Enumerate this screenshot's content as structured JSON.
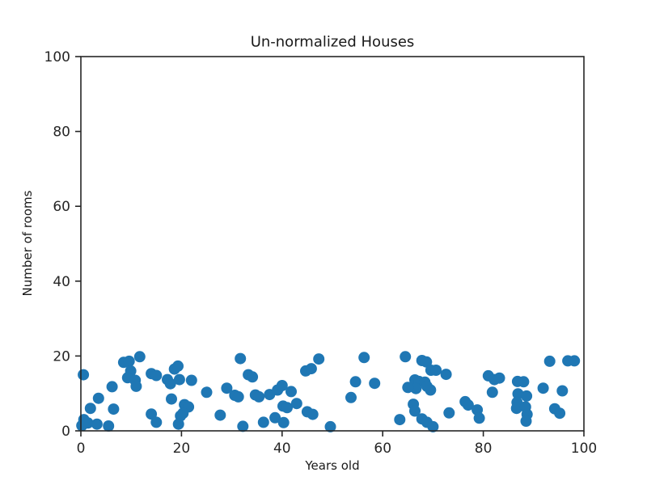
{
  "figure": {
    "background": "#ffffff"
  },
  "chart_data": {
    "type": "scatter",
    "title": "Un-normalized Houses",
    "xlabel": "Years old",
    "ylabel": "Number of rooms",
    "xlim": [
      0,
      100
    ],
    "ylim": [
      0,
      100
    ],
    "xticks": [
      0,
      20,
      40,
      60,
      80,
      100
    ],
    "yticks": [
      0,
      20,
      40,
      60,
      80,
      100
    ],
    "grid": false,
    "legend": null,
    "marker_color": "#1f77b4",
    "axis_color": "#262626",
    "marker_radius_px": 7,
    "points": [
      [
        0.5,
        15.0
      ],
      [
        0.2,
        1.4
      ],
      [
        0.6,
        3.0
      ],
      [
        1.4,
        2.1
      ],
      [
        3.2,
        1.8
      ],
      [
        5.5,
        1.3
      ],
      [
        1.9,
        6.0
      ],
      [
        3.5,
        8.7
      ],
      [
        6.2,
        11.8
      ],
      [
        6.5,
        5.8
      ],
      [
        8.5,
        18.3
      ],
      [
        9.6,
        18.6
      ],
      [
        9.9,
        16.0
      ],
      [
        9.3,
        14.2
      ],
      [
        10.8,
        13.5
      ],
      [
        11.0,
        11.9
      ],
      [
        11.7,
        19.8
      ],
      [
        14.0,
        15.3
      ],
      [
        15.0,
        14.8
      ],
      [
        14.0,
        4.5
      ],
      [
        17.2,
        13.7
      ],
      [
        17.8,
        12.6
      ],
      [
        18.6,
        16.5
      ],
      [
        15.0,
        2.3
      ],
      [
        19.3,
        17.3
      ],
      [
        19.6,
        13.7
      ],
      [
        22.0,
        13.5
      ],
      [
        18.0,
        8.5
      ],
      [
        20.6,
        7.0
      ],
      [
        21.4,
        6.4
      ],
      [
        20.3,
        4.7
      ],
      [
        19.8,
        4.0
      ],
      [
        19.4,
        1.8
      ],
      [
        25.0,
        10.3
      ],
      [
        27.7,
        4.2
      ],
      [
        29.0,
        11.4
      ],
      [
        31.7,
        19.3
      ],
      [
        30.6,
        9.5
      ],
      [
        31.3,
        9.1
      ],
      [
        33.3,
        15.0
      ],
      [
        34.1,
        14.4
      ],
      [
        34.7,
        9.6
      ],
      [
        35.4,
        9.1
      ],
      [
        32.2,
        1.2
      ],
      [
        36.3,
        2.3
      ],
      [
        37.5,
        9.7
      ],
      [
        39.1,
        10.9
      ],
      [
        40.0,
        12.1
      ],
      [
        41.8,
        10.5
      ],
      [
        40.2,
        6.6
      ],
      [
        41.0,
        6.2
      ],
      [
        42.9,
        7.3
      ],
      [
        38.6,
        3.5
      ],
      [
        40.3,
        2.2
      ],
      [
        44.7,
        16.0
      ],
      [
        45.8,
        16.6
      ],
      [
        47.3,
        19.2
      ],
      [
        45.0,
        5.1
      ],
      [
        46.1,
        4.4
      ],
      [
        49.6,
        1.1
      ],
      [
        53.7,
        8.9
      ],
      [
        54.6,
        13.1
      ],
      [
        58.4,
        12.7
      ],
      [
        56.3,
        19.6
      ],
      [
        64.5,
        19.8
      ],
      [
        67.8,
        18.8
      ],
      [
        68.7,
        18.4
      ],
      [
        69.6,
        16.2
      ],
      [
        70.6,
        16.2
      ],
      [
        72.6,
        15.1
      ],
      [
        66.4,
        13.6
      ],
      [
        67.2,
        13.2
      ],
      [
        68.4,
        13.0
      ],
      [
        66.6,
        11.3
      ],
      [
        68.8,
        11.9
      ],
      [
        69.5,
        10.9
      ],
      [
        65.0,
        11.6
      ],
      [
        66.1,
        7.1
      ],
      [
        66.4,
        5.3
      ],
      [
        63.4,
        3.0
      ],
      [
        67.8,
        3.2
      ],
      [
        68.8,
        2.3
      ],
      [
        70.0,
        1.1
      ],
      [
        73.2,
        4.8
      ],
      [
        76.4,
        7.8
      ],
      [
        77.0,
        6.9
      ],
      [
        78.8,
        5.6
      ],
      [
        79.2,
        3.4
      ],
      [
        81.0,
        14.7
      ],
      [
        82.2,
        13.7
      ],
      [
        83.2,
        14.1
      ],
      [
        81.8,
        10.3
      ],
      [
        86.8,
        13.2
      ],
      [
        88.0,
        13.1
      ],
      [
        86.9,
        9.9
      ],
      [
        88.6,
        9.3
      ],
      [
        86.7,
        7.6
      ],
      [
        86.6,
        6.0
      ],
      [
        88.4,
        6.4
      ],
      [
        88.7,
        4.4
      ],
      [
        88.5,
        2.6
      ],
      [
        91.9,
        11.4
      ],
      [
        93.2,
        18.6
      ],
      [
        95.7,
        10.7
      ],
      [
        94.2,
        5.9
      ],
      [
        95.2,
        4.7
      ],
      [
        96.8,
        18.7
      ],
      [
        98.1,
        18.7
      ]
    ]
  }
}
